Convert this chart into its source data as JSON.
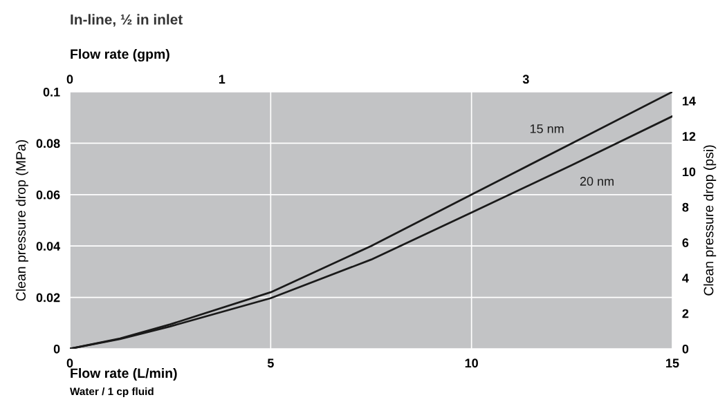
{
  "chart_data": {
    "type": "line",
    "title": "In-line, ½ in inlet",
    "xlabel": "Flow rate (L/min)",
    "x2label": "Flow rate (gpm)",
    "ylabel": "Clean pressure drop (MPa)",
    "y2label": "Clean pressure drop (psi)",
    "x": [
      0,
      1.25,
      2.5,
      5,
      7.5,
      10,
      12.5,
      15
    ],
    "series": [
      {
        "name": "15 nm",
        "color": "#1a1a1a",
        "values": [
          0,
          0.004,
          0.0095,
          0.022,
          0.04,
          0.06,
          0.08,
          0.1
        ]
      },
      {
        "name": "20 nm",
        "color": "#1a1a1a",
        "values": [
          0,
          0.0038,
          0.0087,
          0.0197,
          0.0347,
          0.053,
          0.0715,
          0.0905
        ]
      }
    ],
    "xlim": [
      0,
      15
    ],
    "xticks": [
      0,
      5,
      10,
      15
    ],
    "ylim": [
      0,
      0.1
    ],
    "yticks": [
      0,
      0.02,
      0.04,
      0.06,
      0.08,
      0.1
    ],
    "x2lim": [
      0,
      3.963
    ],
    "x2ticks": [
      0,
      1,
      3
    ],
    "y2lim": [
      0,
      14.504
    ],
    "y2ticks": [
      0,
      2,
      4,
      6,
      8,
      10,
      12,
      14
    ],
    "grid": true,
    "legend": false,
    "marker": "none",
    "line_style": "solid",
    "annotations": [
      "Water / 1 cp fluid"
    ]
  }
}
